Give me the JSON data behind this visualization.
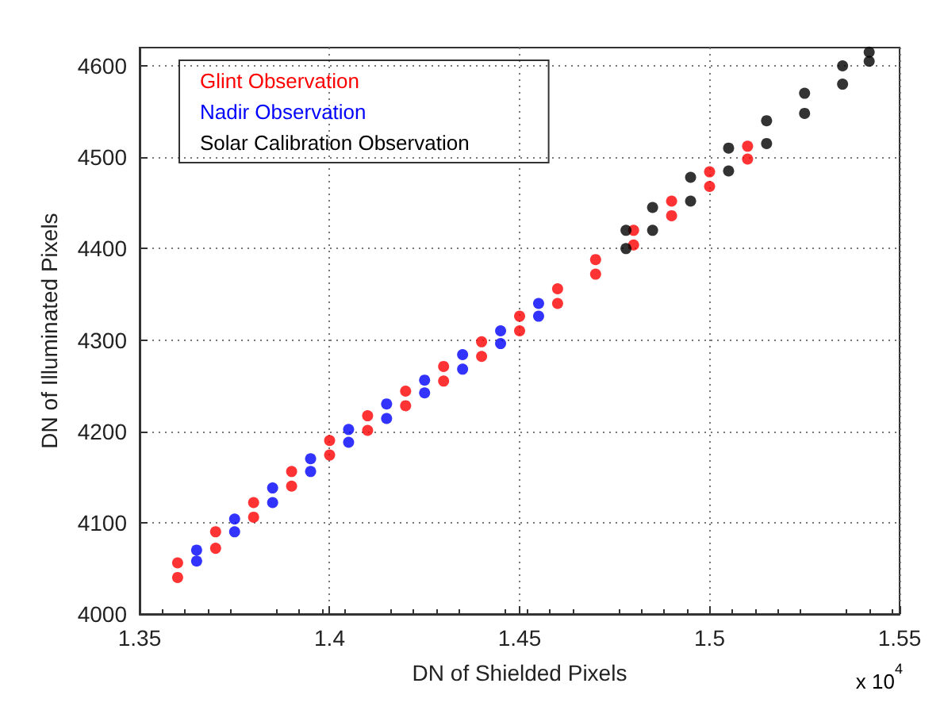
{
  "chart_data": {
    "type": "scatter",
    "xlabel": "DN of Shielded Pixels",
    "ylabel": "DN of Illuminated Pixels",
    "annotations": [
      "x 10$^{4}$"
    ],
    "xlim": [
      1.35,
      1.55
    ],
    "xticks": [
      1.35,
      1.4,
      1.45,
      1.5,
      1.55
    ],
    "ylim": [
      4000,
      4620
    ],
    "yticks": [
      4000,
      4100,
      4200,
      4300,
      4400,
      4500,
      4600
    ],
    "grid": true,
    "legend": "top left",
    "marker": "circle",
    "series": [
      {
        "name": "Glint Observation",
        "color": "#ff0000",
        "x": [
          1.36,
          1.36,
          1.37,
          1.37,
          1.38,
          1.38,
          1.39,
          1.39,
          1.4,
          1.4,
          1.41,
          1.41,
          1.42,
          1.42,
          1.43,
          1.43,
          1.44,
          1.44,
          1.45,
          1.45,
          1.46,
          1.46,
          1.47,
          1.47,
          1.48,
          1.48,
          1.49,
          1.49,
          1.5,
          1.5,
          1.51,
          1.51
        ],
        "values": [
          4040,
          4056,
          4072,
          4090,
          4106,
          4122,
          4140,
          4156,
          4174,
          4190,
          4201,
          4217,
          4228,
          4244,
          4255,
          4271,
          4282,
          4298,
          4310,
          4326,
          4340,
          4356,
          4372,
          4388,
          4404,
          4420,
          4436,
          4452,
          4468,
          4484,
          4498,
          4512
        ]
      },
      {
        "name": "Nadir Observation",
        "color": "#0000ff",
        "x": [
          1.365,
          1.365,
          1.375,
          1.375,
          1.385,
          1.385,
          1.395,
          1.395,
          1.405,
          1.405,
          1.415,
          1.415,
          1.425,
          1.425,
          1.435,
          1.435,
          1.445,
          1.445,
          1.455,
          1.455
        ],
        "values": [
          4058,
          4070,
          4090,
          4104,
          4122,
          4138,
          4156,
          4170,
          4188,
          4202,
          4214,
          4230,
          4242,
          4256,
          4268,
          4284,
          4296,
          4310,
          4326,
          4340
        ]
      },
      {
        "name": "Solar Calibration Observation",
        "color": "#000000",
        "x": [
          1.478,
          1.478,
          1.485,
          1.485,
          1.495,
          1.495,
          1.505,
          1.505,
          1.515,
          1.515,
          1.525,
          1.525,
          1.535,
          1.535,
          1.542,
          1.542
        ],
        "values": [
          4400,
          4420,
          4420,
          4445,
          4452,
          4478,
          4485,
          4510,
          4515,
          4540,
          4548,
          4570,
          4580,
          4600,
          4605,
          4615
        ]
      }
    ]
  }
}
